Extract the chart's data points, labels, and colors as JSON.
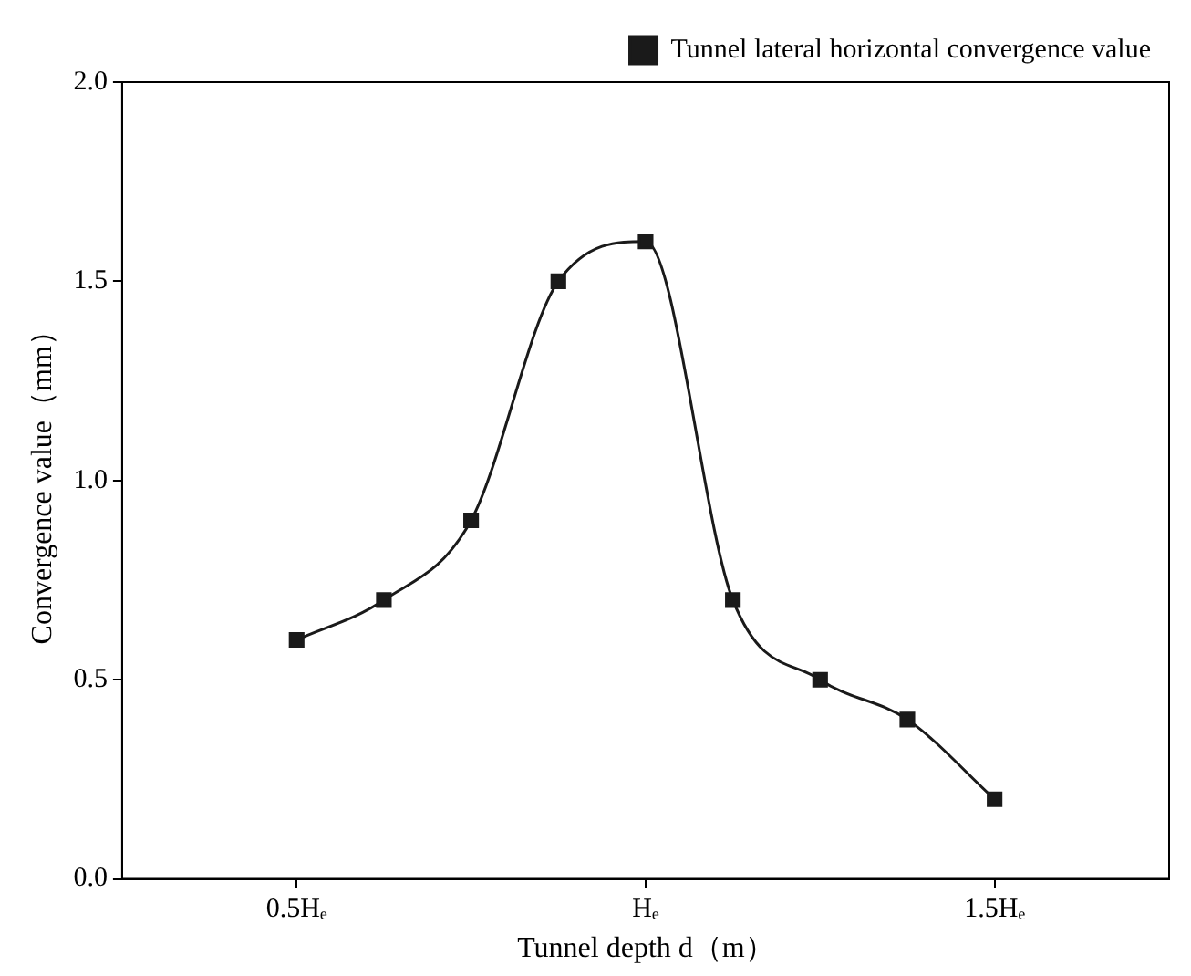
{
  "chart_data": {
    "type": "line",
    "xlabel": "Tunnel depth d（m）",
    "ylabel": "Convergence value（mm）",
    "x": [
      0.5,
      0.625,
      0.75,
      0.875,
      1.0,
      1.125,
      1.25,
      1.375,
      1.5
    ],
    "series": [
      {
        "name": "Tunnel lateral horizontal convergence value",
        "color": "#1a1a1a",
        "values": [
          0.6,
          0.7,
          0.9,
          1.5,
          1.6,
          0.7,
          0.5,
          0.4,
          0.2
        ]
      }
    ],
    "xlim": [
      0.25,
      1.75
    ],
    "xticks": [
      {
        "value": 0.5,
        "label": "0.5Hₑ"
      },
      {
        "value": 1.0,
        "label": "Hₑ"
      },
      {
        "value": 1.5,
        "label": "1.5Hₑ"
      }
    ],
    "ylim": [
      0,
      2
    ],
    "yticks": [
      {
        "value": 0,
        "label": "0.0"
      },
      0.5,
      {
        "value": 1,
        "label": "1.0"
      },
      1.5,
      {
        "value": 2,
        "label": "2.0"
      }
    ],
    "grid": false,
    "legend": "top right",
    "marker": "square",
    "line_style": "solid"
  }
}
